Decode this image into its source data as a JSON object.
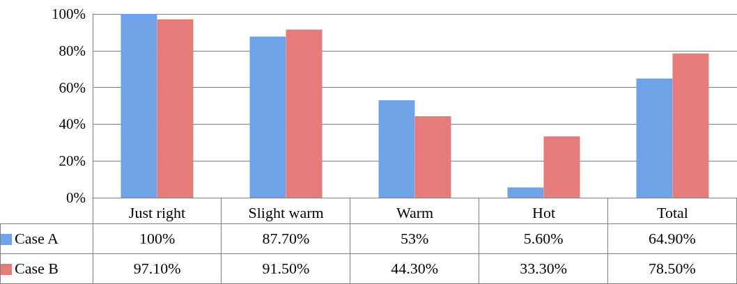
{
  "chart_data": {
    "type": "bar",
    "categories": [
      "Just right",
      "Slight warm",
      "Warm",
      "Hot",
      "Total"
    ],
    "series": [
      {
        "name": "Case A",
        "color": "#6fa3e8",
        "values": [
          100,
          87.7,
          53,
          5.6,
          64.9
        ],
        "value_labels": [
          "100%",
          "87.70%",
          "53%",
          "5.60%",
          "64.90%"
        ]
      },
      {
        "name": "Case B",
        "color": "#e67b7b",
        "values": [
          97.1,
          91.5,
          44.3,
          33.3,
          78.5
        ],
        "value_labels": [
          "97.10%",
          "91.50%",
          "44.30%",
          "33.30%",
          "78.50%"
        ]
      }
    ],
    "ylim": [
      0,
      100
    ],
    "yticks": [
      {
        "value": 0,
        "label": "0%"
      },
      {
        "value": 20,
        "label": "20%"
      },
      {
        "value": 40,
        "label": "40%"
      },
      {
        "value": 60,
        "label": "60%"
      },
      {
        "value": 80,
        "label": "80%"
      },
      {
        "value": 100,
        "label": "100%"
      }
    ],
    "grid": "y",
    "legend": "bottom"
  }
}
